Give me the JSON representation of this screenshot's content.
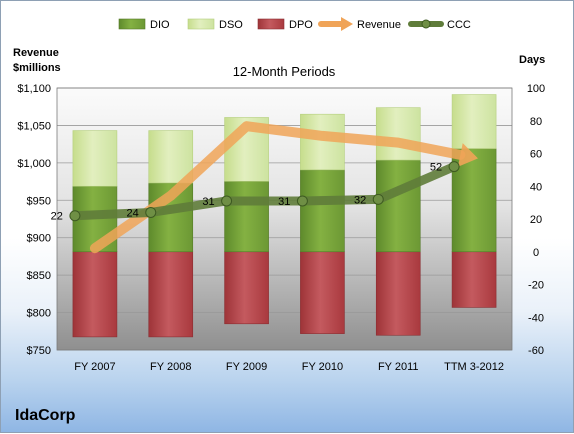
{
  "chart_data": {
    "type": "bar",
    "title": "12-Month Periods",
    "company": "IdaCorp",
    "left_axis_title": [
      "Revenue",
      "$millions"
    ],
    "right_axis_title": "Days",
    "categories": [
      "FY 2007",
      "FY 2008",
      "FY 2009",
      "FY 2010",
      "FY 2011",
      "TTM 3-2012"
    ],
    "left_axis": {
      "min": 750,
      "max": 1100,
      "step": 50,
      "tick_labels": [
        "$750",
        "$800",
        "$850",
        "$900",
        "$950",
        "$1,000",
        "$1,050",
        "$1,100"
      ]
    },
    "right_axis": {
      "min": -60,
      "max": 100,
      "step": 20,
      "tick_labels": [
        "-60",
        "-40",
        "-20",
        "0",
        "20",
        "40",
        "60",
        "80",
        "100"
      ]
    },
    "legend_placement": "top",
    "series": [
      {
        "name": "DIO",
        "kind": "stacked-bar",
        "color": "#76a23a",
        "values": [
          40,
          42,
          43,
          50,
          56,
          63
        ]
      },
      {
        "name": "DSO",
        "kind": "stacked-bar",
        "color": "#d4e6a4",
        "values": [
          34,
          32,
          39,
          34,
          32,
          33
        ]
      },
      {
        "name": "DPO",
        "kind": "stacked-bar-negative",
        "color": "#b5454b",
        "values": [
          -52,
          -52,
          -44,
          -50,
          -51,
          -34
        ]
      },
      {
        "name": "Revenue",
        "kind": "line-arrow",
        "color": "#f0a458",
        "values": [
          886,
          956,
          1049,
          1036,
          1027,
          1007
        ]
      },
      {
        "name": "CCC",
        "kind": "line",
        "color": "#5f7c3a",
        "values": [
          22,
          24,
          31,
          31,
          32,
          52
        ]
      }
    ],
    "ccc_labels": [
      "22",
      "24",
      "31",
      "31",
      "32",
      "52"
    ]
  }
}
